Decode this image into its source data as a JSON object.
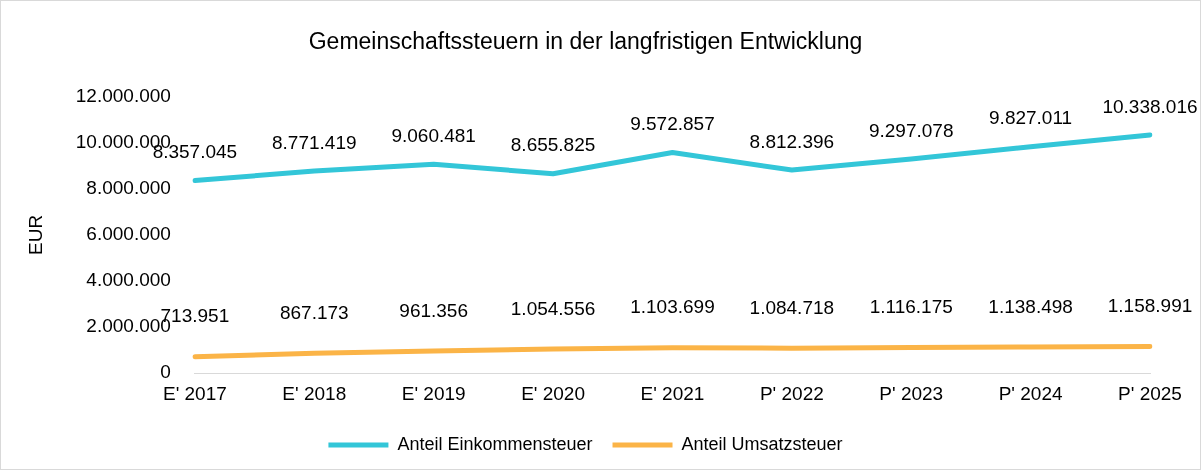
{
  "chart_data": {
    "type": "line",
    "title": "Gemeinschaftssteuern in der langfristigen Entwicklung",
    "ylabel": "EUR",
    "categories": [
      "E' 2017",
      "E' 2018",
      "E' 2019",
      "E' 2020",
      "E' 2021",
      "P' 2022",
      "P' 2023",
      "P' 2024",
      "P' 2025"
    ],
    "series": [
      {
        "name": "Anteil Einkommensteuer",
        "color": "#33c6d8",
        "values": [
          8357045,
          8771419,
          9060481,
          8655825,
          9572857,
          8812396,
          9297078,
          9827011,
          10338016
        ],
        "value_labels": [
          "8.357.045",
          "8.771.419",
          "9.060.481",
          "8.655.825",
          "9.572.857",
          "8.812.396",
          "9.297.078",
          "9.827.011",
          "10.338.016"
        ]
      },
      {
        "name": "Anteil Umsatzsteuer",
        "color": "#fbb447",
        "values": [
          713951,
          867173,
          961356,
          1054556,
          1103699,
          1084718,
          1116175,
          1138498,
          1158991
        ],
        "value_labels": [
          "713.951",
          "867.173",
          "961.356",
          "1.054.556",
          "1.103.699",
          "1.084.718",
          "1.116.175",
          "1.138.498",
          "1.158.991"
        ]
      }
    ],
    "ylim": [
      0,
      12000000
    ],
    "yticks": [
      0,
      {
        "value": 2000000,
        "label": "2.000.000"
      },
      {
        "value": 4000000,
        "label": "4.000.000"
      },
      {
        "value": 6000000,
        "label": "6.000.000"
      },
      {
        "value": 8000000,
        "label": "8.000.000"
      },
      {
        "value": 10000000,
        "label": "10.000.000"
      },
      {
        "value": 12000000,
        "label": "12.000.000"
      }
    ],
    "grid": false,
    "legend": "bottom",
    "marker": "none",
    "line_style": "solid"
  }
}
